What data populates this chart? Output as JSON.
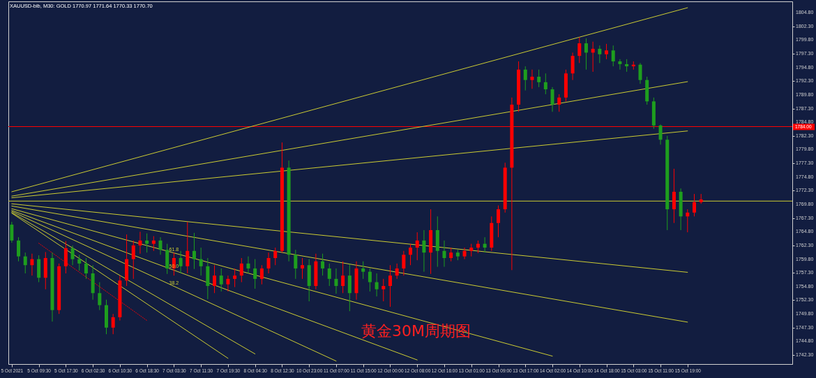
{
  "chart_data": {
    "type": "candlestick",
    "title": "XAUUSD-bib, M30:  GOLD  1770.97 1771.64 1770.33 1770.70",
    "categories": [
      "5 Oct 2021",
      null,
      null,
      null,
      "5 Oct 09:30",
      null,
      null,
      null,
      "5 Oct 17:30",
      null,
      null,
      null,
      "6 Oct 02:30",
      null,
      null,
      null,
      "6 Oct 10:30",
      null,
      null,
      null,
      "6 Oct 18:30",
      null,
      null,
      null,
      "7 Oct 03:30",
      null,
      null,
      null,
      "7 Oct 11:30",
      null,
      null,
      null,
      "7 Oct 19:30",
      null,
      null,
      null,
      "8 Oct 04:30",
      null,
      null,
      null,
      "8 Oct 12:30",
      null,
      null,
      null,
      "10 Oct 23:00",
      null,
      null,
      null,
      "11 Oct 07:00",
      null,
      null,
      null,
      "11 Oct 15:00",
      null,
      null,
      null,
      "12 Oct 00:00",
      null,
      null,
      null,
      "12 Oct 08:00",
      null,
      null,
      null,
      "12 Oct 16:00",
      null,
      null,
      null,
      "13 Oct 01:00",
      null,
      null,
      null,
      "13 Oct 09:00",
      null,
      null,
      null,
      "13 Oct 17:00",
      null,
      null,
      null,
      "14 Oct 02:00",
      null,
      null,
      null,
      "14 Oct 10:00",
      null,
      null,
      null,
      "14 Oct 18:00",
      null,
      null,
      null,
      "15 Oct 03:00",
      null,
      null,
      null,
      "15 Oct 11:00",
      null,
      null,
      null,
      "15 Oct 19:00",
      null,
      null,
      null,
      null,
      null,
      null,
      null,
      null,
      null,
      null,
      null,
      null,
      null,
      null,
      null
    ],
    "ohlc": [
      [
        1766.1,
        1766.6,
        1762.8,
        1763.2
      ],
      [
        1763.2,
        1763.8,
        1759.4,
        1760.3
      ],
      [
        1760.3,
        1761.0,
        1757.2,
        1758.7
      ],
      [
        1758.7,
        1760.8,
        1756.8,
        1759.8
      ],
      [
        1759.8,
        1760.5,
        1755.6,
        1756.4
      ],
      [
        1756.4,
        1761.1,
        1754.3,
        1760.0
      ],
      [
        1760.0,
        1761.0,
        1748.4,
        1750.5
      ],
      [
        1750.5,
        1759.0,
        1749.8,
        1758.5
      ],
      [
        1758.5,
        1763.1,
        1757.2,
        1761.8
      ],
      [
        1761.8,
        1762.3,
        1758.7,
        1759.8
      ],
      [
        1759.8,
        1760.6,
        1757.7,
        1759.0
      ],
      [
        1759.0,
        1760.0,
        1756.2,
        1757.2
      ],
      [
        1757.2,
        1758.7,
        1752.4,
        1753.6
      ],
      [
        1753.6,
        1755.6,
        1750.5,
        1751.4
      ],
      [
        1751.4,
        1752.4,
        1746.1,
        1747.3
      ],
      [
        1747.3,
        1749.8,
        1746.1,
        1749.2
      ],
      [
        1749.2,
        1756.8,
        1748.6,
        1755.9
      ],
      [
        1755.9,
        1764.3,
        1754.9,
        1759.8
      ],
      [
        1759.8,
        1763.2,
        1756.2,
        1762.3
      ],
      [
        1762.3,
        1764.8,
        1760.8,
        1763.2
      ],
      [
        1763.2,
        1764.5,
        1761.0,
        1762.6
      ],
      [
        1762.6,
        1764.0,
        1761.3,
        1763.2
      ],
      [
        1763.2,
        1763.8,
        1760.6,
        1761.5
      ],
      [
        1761.5,
        1762.6,
        1757.1,
        1758.1
      ],
      [
        1758.1,
        1761.0,
        1756.8,
        1760.0
      ],
      [
        1760.0,
        1761.3,
        1757.2,
        1758.5
      ],
      [
        1758.5,
        1766.6,
        1757.2,
        1761.3
      ],
      [
        1761.3,
        1764.6,
        1758.0,
        1759.8
      ],
      [
        1759.8,
        1761.9,
        1756.8,
        1758.5
      ],
      [
        1758.5,
        1760.0,
        1752.5,
        1754.9
      ],
      [
        1754.9,
        1758.7,
        1753.6,
        1756.8
      ],
      [
        1756.8,
        1758.1,
        1753.9,
        1755.2
      ],
      [
        1755.2,
        1756.8,
        1753.9,
        1756.2
      ],
      [
        1756.2,
        1758.1,
        1754.7,
        1756.8
      ],
      [
        1756.8,
        1760.0,
        1755.6,
        1759.0
      ],
      [
        1759.0,
        1760.3,
        1757.2,
        1758.1
      ],
      [
        1758.1,
        1759.8,
        1754.4,
        1756.2
      ],
      [
        1756.2,
        1758.7,
        1755.2,
        1758.1
      ],
      [
        1758.1,
        1761.0,
        1757.2,
        1760.0
      ],
      [
        1760.0,
        1761.9,
        1758.7,
        1761.3
      ],
      [
        1761.3,
        1781.1,
        1761.0,
        1776.5
      ],
      [
        1776.5,
        1777.8,
        1759.4,
        1760.6
      ],
      [
        1760.6,
        1761.5,
        1756.2,
        1758.1
      ],
      [
        1758.1,
        1760.0,
        1756.2,
        1758.7
      ],
      [
        1758.7,
        1759.8,
        1752.1,
        1754.9
      ],
      [
        1754.9,
        1760.8,
        1754.3,
        1759.4
      ],
      [
        1759.4,
        1760.8,
        1756.8,
        1758.1
      ],
      [
        1758.1,
        1759.0,
        1754.9,
        1756.2
      ],
      [
        1756.2,
        1758.1,
        1753.5,
        1754.9
      ],
      [
        1754.9,
        1759.4,
        1753.6,
        1756.8
      ],
      [
        1756.8,
        1758.9,
        1750.3,
        1753.6
      ],
      [
        1753.6,
        1759.4,
        1752.4,
        1758.1
      ],
      [
        1758.1,
        1759.4,
        1756.2,
        1757.5
      ],
      [
        1757.5,
        1758.1,
        1753.9,
        1755.6
      ],
      [
        1755.6,
        1757.2,
        1753.0,
        1754.3
      ],
      [
        1754.3,
        1756.2,
        1752.1,
        1754.9
      ],
      [
        1754.9,
        1758.7,
        1751.1,
        1756.8
      ],
      [
        1756.8,
        1759.0,
        1756.2,
        1758.1
      ],
      [
        1758.1,
        1761.3,
        1756.8,
        1760.6
      ],
      [
        1760.6,
        1762.6,
        1758.7,
        1761.9
      ],
      [
        1761.9,
        1764.7,
        1759.6,
        1763.2
      ],
      [
        1763.2,
        1765.1,
        1757.5,
        1761.0
      ],
      [
        1761.0,
        1768.9,
        1757.1,
        1765.1
      ],
      [
        1765.1,
        1767.6,
        1758.4,
        1761.3
      ],
      [
        1761.3,
        1763.2,
        1758.4,
        1760.0
      ],
      [
        1760.0,
        1761.9,
        1759.4,
        1761.0
      ],
      [
        1761.0,
        1761.5,
        1759.6,
        1760.3
      ],
      [
        1760.3,
        1761.9,
        1759.8,
        1761.3
      ],
      [
        1761.3,
        1762.6,
        1760.3,
        1761.9
      ],
      [
        1761.9,
        1763.2,
        1760.9,
        1762.6
      ],
      [
        1762.6,
        1763.8,
        1761.0,
        1761.9
      ],
      [
        1761.9,
        1767.6,
        1761.3,
        1766.4
      ],
      [
        1766.4,
        1769.6,
        1763.8,
        1768.9
      ],
      [
        1768.9,
        1777.4,
        1768.3,
        1776.5
      ],
      [
        1776.5,
        1789.3,
        1757.8,
        1788.0
      ],
      [
        1788.0,
        1795.9,
        1786.7,
        1794.4
      ],
      [
        1794.4,
        1795.0,
        1790.6,
        1792.5
      ],
      [
        1792.5,
        1794.4,
        1790.9,
        1793.1
      ],
      [
        1793.1,
        1794.4,
        1791.2,
        1792.1
      ],
      [
        1792.1,
        1793.7,
        1789.9,
        1790.8
      ],
      [
        1790.8,
        1791.2,
        1786.7,
        1788.0
      ],
      [
        1788.0,
        1789.9,
        1786.7,
        1789.3
      ],
      [
        1789.3,
        1794.4,
        1788.6,
        1793.7
      ],
      [
        1793.7,
        1797.5,
        1792.5,
        1796.9
      ],
      [
        1796.9,
        1800.3,
        1795.6,
        1799.2
      ],
      [
        1799.2,
        1800.1,
        1794.4,
        1797.5
      ],
      [
        1797.5,
        1799.5,
        1794.0,
        1798.2
      ],
      [
        1798.2,
        1798.8,
        1795.6,
        1797.2
      ],
      [
        1797.2,
        1799.1,
        1796.3,
        1797.9
      ],
      [
        1797.9,
        1798.8,
        1795.0,
        1795.9
      ],
      [
        1795.9,
        1796.3,
        1794.4,
        1795.4
      ],
      [
        1795.4,
        1796.3,
        1794.0,
        1795.0
      ],
      [
        1795.0,
        1795.9,
        1794.4,
        1795.3
      ],
      [
        1795.3,
        1795.6,
        1791.8,
        1792.5
      ],
      [
        1792.5,
        1793.1,
        1788.0,
        1788.6
      ],
      [
        1788.6,
        1789.3,
        1783.6,
        1784.2
      ],
      [
        1784.2,
        1784.4,
        1780.7,
        1781.6
      ],
      [
        1781.6,
        1782.3,
        1765.1,
        1768.9
      ],
      [
        1768.9,
        1776.3,
        1766.4,
        1772.1
      ],
      [
        1772.1,
        1772.7,
        1765.1,
        1767.6
      ],
      [
        1767.6,
        1768.9,
        1764.7,
        1768.3
      ],
      [
        1768.3,
        1771.7,
        1767.6,
        1770.2
      ],
      [
        1770.2,
        1771.7,
        1769.9,
        1770.7
      ],
      null,
      null,
      null,
      null,
      null,
      null,
      null,
      null,
      null,
      null,
      null,
      null,
      null
    ],
    "colors": [
      "#1e9e1e",
      "#1e9e1e",
      "#1e9e1e",
      "#ff0000",
      "#1e9e1e",
      "#ff0000",
      "#1e9e1e",
      "#ff0000",
      "#ff0000",
      "#1e9e1e",
      "#1e9e1e",
      "#1e9e1e",
      "#1e9e1e",
      "#1e9e1e",
      "#1e9e1e",
      "#ff0000",
      "#ff0000",
      "#ff0000",
      "#ff0000",
      "#ff0000",
      "#1e9e1e",
      "#ff0000",
      "#1e9e1e",
      "#1e9e1e",
      "#ff0000",
      "#1e9e1e",
      "#ff0000",
      "#1e9e1e",
      "#1e9e1e",
      "#1e9e1e",
      "#ff0000",
      "#1e9e1e",
      "#ff0000",
      "#ff0000",
      "#ff0000",
      "#1e9e1e",
      "#1e9e1e",
      "#ff0000",
      "#ff0000",
      "#ff0000",
      "#ff0000",
      "#1e9e1e",
      "#1e9e1e",
      "#ff0000",
      "#1e9e1e",
      "#ff0000",
      "#1e9e1e",
      "#1e9e1e",
      "#1e9e1e",
      "#ff0000",
      "#1e9e1e",
      "#ff0000",
      "#1e9e1e",
      "#1e9e1e",
      "#1e9e1e",
      "#ff0000",
      "#ff0000",
      "#ff0000",
      "#ff0000",
      "#ff0000",
      "#ff0000",
      "#1e9e1e",
      "#ff0000",
      "#1e9e1e",
      "#1e9e1e",
      "#ff0000",
      "#1e9e1e",
      "#ff0000",
      "#ff0000",
      "#ff0000",
      "#1e9e1e",
      "#ff0000",
      "#ff0000",
      "#ff0000",
      "#ff0000",
      "#ff0000",
      "#1e9e1e",
      "#ff0000",
      "#1e9e1e",
      "#1e9e1e",
      "#1e9e1e",
      "#ff0000",
      "#ff0000",
      "#ff0000",
      "#ff0000",
      "#1e9e1e",
      "#ff0000",
      "#1e9e1e",
      "#ff0000",
      "#1e9e1e",
      "#1e9e1e",
      "#1e9e1e",
      "#ff0000",
      "#1e9e1e",
      "#1e9e1e",
      "#1e9e1e",
      "#1e9e1e",
      "#1e9e1e",
      "#ff0000",
      "#1e9e1e",
      "#ff0000",
      "#ff0000",
      "#ff0000",
      null,
      null,
      null,
      null,
      null,
      null,
      null,
      null,
      null,
      null,
      null,
      null,
      null
    ],
    "series": [
      {
        "type": "line",
        "color": "#cccc33",
        "x": [
          "5 Oct 2021",
          "15 Oct 19:00"
        ],
        "values": [
          1772.1,
          1805.7
        ]
      },
      {
        "type": "line",
        "color": "#cccc33",
        "x": [
          "5 Oct 2021",
          "15 Oct 19:00"
        ],
        "values": [
          1771.3,
          1792.2
        ]
      },
      {
        "type": "line",
        "color": "#cccc33",
        "x": [
          "5 Oct 2021",
          "15 Oct 19:00"
        ],
        "values": [
          1771.0,
          1783.2
        ]
      },
      {
        "type": "line",
        "color": "#cccc33",
        "x": [
          "5 Oct 2021",
          "15 Oct 19:00"
        ],
        "values": [
          1769.9,
          1757.4
        ]
      },
      {
        "type": "line",
        "color": "#cccc33",
        "x": [
          "5 Oct 2021",
          "15 Oct 19:00"
        ],
        "values": [
          1769.5,
          1748.3
        ]
      },
      {
        "type": "line",
        "color": "#cccc33",
        "x": [
          "5 Oct 2021",
          "14 Oct 02:00"
        ],
        "values": [
          1769.0,
          1742.1
        ]
      },
      {
        "type": "line",
        "color": "#cccc33",
        "x": [
          "5 Oct 2021",
          "12 Oct 08:00"
        ],
        "values": [
          1768.7,
          1741.4
        ]
      },
      {
        "type": "line",
        "color": "#cccc33",
        "x": [
          "5 Oct 2021",
          "11 Oct 07:00"
        ],
        "values": [
          1768.5,
          1741.2
        ]
      },
      {
        "type": "line",
        "color": "#cccc33",
        "x": [
          "5 Oct 2021",
          "8 Oct 04:30"
        ],
        "values": [
          1768.3,
          1742.5
        ]
      },
      {
        "type": "line",
        "color": "#cccc33",
        "x": [
          "5 Oct 2021",
          "7 Oct 19:30"
        ],
        "values": [
          1768.2,
          1741.7
        ]
      },
      {
        "type": "line",
        "color": "#ff0000",
        "line_style": "dotted",
        "x": [
          "5 Oct 09:30",
          "6 Oct 18:30"
        ],
        "values": [
          1762.7,
          1748.6
        ]
      }
    ],
    "ylim": [
      1740.65,
      1806.85
    ],
    "yticks": [
      {
        "value": 1742.3,
        "label": "1742.30"
      },
      {
        "value": 1744.8,
        "label": "1744.80"
      },
      {
        "value": 1747.3,
        "label": "1747.30"
      },
      {
        "value": 1749.8,
        "label": "1749.80"
      },
      {
        "value": 1752.3,
        "label": "1752.30"
      },
      {
        "value": 1754.8,
        "label": "1754.80"
      },
      {
        "value": 1757.3,
        "label": "1757.30"
      },
      {
        "value": 1759.8,
        "label": "1759.80"
      },
      {
        "value": 1762.3,
        "label": "1762.30"
      },
      {
        "value": 1764.8,
        "label": "1764.80"
      },
      {
        "value": 1767.3,
        "label": "1767.30"
      },
      {
        "value": 1769.8,
        "label": "1769.80"
      },
      {
        "value": 1772.3,
        "label": "1772.30"
      },
      {
        "value": 1774.8,
        "label": "1774.80"
      },
      {
        "value": 1777.3,
        "label": "1777.30"
      },
      {
        "value": 1779.8,
        "label": "1779.80"
      },
      {
        "value": 1782.3,
        "label": "1782.30"
      },
      {
        "value": 1784.8,
        "label": "1784.80"
      },
      {
        "value": 1787.3,
        "label": "1787.30"
      },
      {
        "value": 1789.8,
        "label": "1789.80"
      },
      {
        "value": 1792.3,
        "label": "1792.30"
      },
      {
        "value": 1794.8,
        "label": "1794.80"
      },
      {
        "value": 1797.3,
        "label": "1797.30"
      },
      {
        "value": 1799.8,
        "label": "1799.80"
      },
      {
        "value": 1802.3,
        "label": "1802.30"
      },
      {
        "value": 1804.8,
        "label": "1804.80"
      }
    ],
    "ref_lines": [
      {
        "axis": "y",
        "value": 1784.0,
        "label": "1784.00",
        "color": "#ff0000"
      },
      {
        "axis": "y",
        "value": 1770.4,
        "color": "#cccc33"
      }
    ],
    "annotations": [
      "黄金30M周期图",
      {
        "text": "61.8",
        "x": "7 Oct 03:30",
        "y": 1760.9
      },
      {
        "text": "50.0",
        "x": "7 Oct 03:30",
        "y": 1757.8
      },
      {
        "text": "38.2",
        "x": "7 Oct 03:30",
        "y": 1754.8
      }
    ]
  }
}
